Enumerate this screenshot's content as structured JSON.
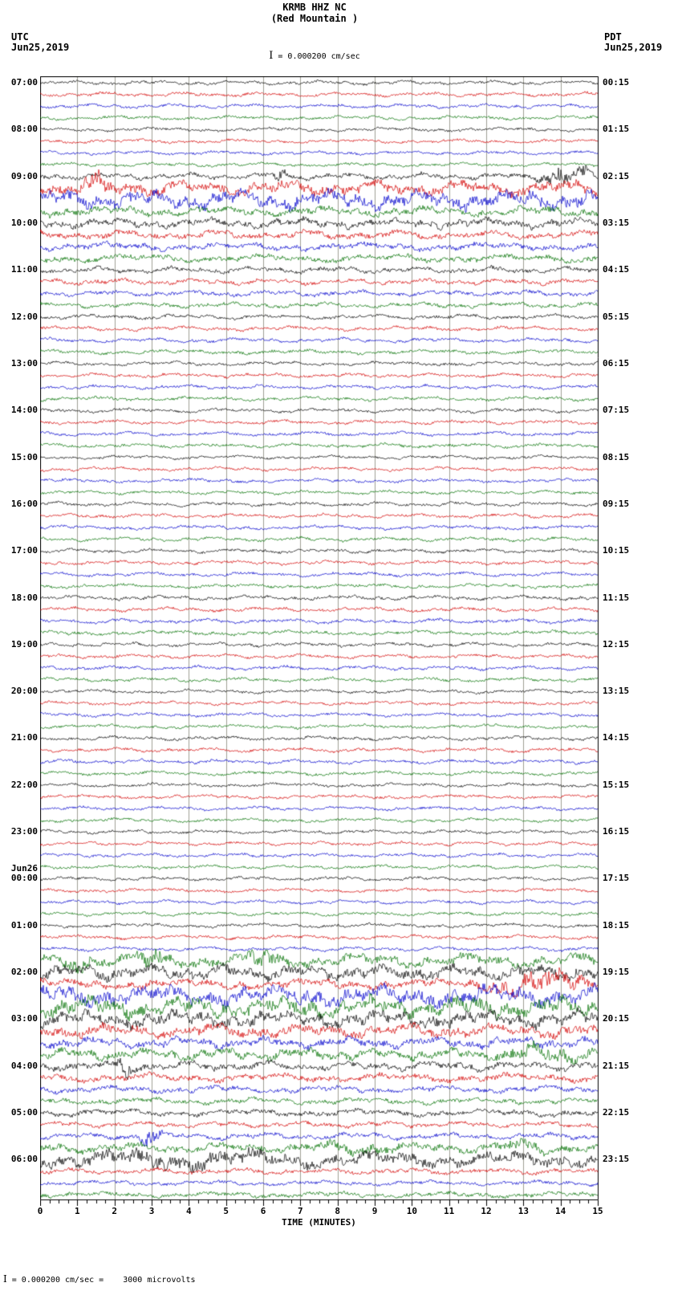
{
  "header": {
    "title": "KRMB HHZ NC",
    "subtitle": "(Red Mountain )",
    "scale_icon": "I",
    "scale_label": " = 0.000200 cm/sec",
    "left_tz": "UTC",
    "left_date": "Jun25,2019",
    "right_tz": "PDT",
    "right_date": "Jun25,2019"
  },
  "footer": {
    "scale_icon": "I",
    "note": " = 0.000200 cm/sec =    3000 microvolts"
  },
  "chart_data": {
    "type": "line",
    "subtype": "seismogram-helicorder",
    "title": "KRMB HHZ NC (Red Mountain )",
    "xlabel": "TIME (MINUTES)",
    "x_range": [
      0,
      15
    ],
    "x_ticks": [
      0,
      1,
      2,
      3,
      4,
      5,
      6,
      7,
      8,
      9,
      10,
      11,
      12,
      13,
      14,
      15
    ],
    "minutes_per_line": 15,
    "grid": "vertical-minute-lines",
    "legend_position": "none",
    "colors_cycle": [
      "#000000",
      "#d40000",
      "#0000cd",
      "#007000"
    ],
    "grid_color": "#a0a095",
    "rows": [
      {
        "utc": "07:00",
        "pdt": "00:15",
        "amp": 1.3
      },
      {
        "amp": 1.3
      },
      {
        "amp": 1.3
      },
      {
        "amp": 1.3
      },
      {
        "utc": "08:00",
        "pdt": "01:15",
        "amp": 1.2
      },
      {
        "amp": 1.2
      },
      {
        "amp": 1.2
      },
      {
        "amp": 1.2
      },
      {
        "utc": "09:00",
        "pdt": "02:15",
        "amp": 2.0,
        "bursts": [
          [
            6.2,
            6.7,
            3
          ],
          [
            13.3,
            15,
            4
          ]
        ]
      },
      {
        "amp": 4.5,
        "bursts": [
          [
            1.0,
            2.0,
            1.8
          ]
        ]
      },
      {
        "amp": 5.5
      },
      {
        "amp": 3.0
      },
      {
        "utc": "10:00",
        "pdt": "03:15",
        "amp": 3.0
      },
      {
        "amp": 2.6
      },
      {
        "amp": 2.4
      },
      {
        "amp": 2.4
      },
      {
        "utc": "11:00",
        "pdt": "04:15",
        "amp": 2.0
      },
      {
        "amp": 1.8
      },
      {
        "amp": 1.8
      },
      {
        "amp": 1.7
      },
      {
        "utc": "12:00",
        "pdt": "05:15",
        "amp": 1.5
      },
      {
        "amp": 1.4
      },
      {
        "amp": 1.4
      },
      {
        "amp": 1.4
      },
      {
        "utc": "13:00",
        "pdt": "06:15",
        "amp": 1.3
      },
      {
        "amp": 1.3
      },
      {
        "amp": 1.3
      },
      {
        "amp": 1.3
      },
      {
        "utc": "14:00",
        "pdt": "07:15",
        "amp": 1.3
      },
      {
        "amp": 1.3
      },
      {
        "amp": 1.3
      },
      {
        "amp": 1.3
      },
      {
        "utc": "15:00",
        "pdt": "08:15",
        "amp": 1.2
      },
      {
        "amp": 1.2
      },
      {
        "amp": 1.2
      },
      {
        "amp": 1.2
      },
      {
        "utc": "16:00",
        "pdt": "09:15",
        "amp": 1.3
      },
      {
        "amp": 1.3
      },
      {
        "amp": 1.3
      },
      {
        "amp": 1.3
      },
      {
        "utc": "17:00",
        "pdt": "10:15",
        "amp": 1.3
      },
      {
        "amp": 1.3
      },
      {
        "amp": 1.3
      },
      {
        "amp": 1.3
      },
      {
        "utc": "18:00",
        "pdt": "11:15",
        "amp": 1.4
      },
      {
        "amp": 1.4
      },
      {
        "amp": 1.4
      },
      {
        "amp": 1.4
      },
      {
        "utc": "19:00",
        "pdt": "12:15",
        "amp": 1.3
      },
      {
        "amp": 1.3
      },
      {
        "amp": 1.3
      },
      {
        "amp": 1.3
      },
      {
        "utc": "20:00",
        "pdt": "13:15",
        "amp": 1.2
      },
      {
        "amp": 1.2
      },
      {
        "amp": 1.2
      },
      {
        "amp": 1.2
      },
      {
        "utc": "21:00",
        "pdt": "14:15",
        "amp": 1.3
      },
      {
        "amp": 1.3
      },
      {
        "amp": 1.3
      },
      {
        "amp": 1.3
      },
      {
        "utc": "22:00",
        "pdt": "15:15",
        "amp": 1.2
      },
      {
        "amp": 1.2
      },
      {
        "amp": 1.2
      },
      {
        "amp": 1.2
      },
      {
        "utc": "23:00",
        "pdt": "16:15",
        "amp": 1.2
      },
      {
        "amp": 1.2
      },
      {
        "amp": 1.2
      },
      {
        "amp": 1.2
      },
      {
        "utc": "00:00",
        "date": "Jun26",
        "pdt": "17:15",
        "amp": 1.2
      },
      {
        "amp": 1.2
      },
      {
        "amp": 1.2
      },
      {
        "amp": 1.2
      },
      {
        "utc": "01:00",
        "pdt": "18:15",
        "amp": 1.3
      },
      {
        "amp": 1.3
      },
      {
        "amp": 1.3
      },
      {
        "amp": 4.0,
        "bursts": [
          [
            0.5,
            1.5,
            2
          ],
          [
            2.5,
            3.5,
            2
          ],
          [
            5.5,
            6.5,
            2
          ]
        ]
      },
      {
        "utc": "02:00",
        "pdt": "19:15",
        "amp": 4.5
      },
      {
        "amp": 3.0,
        "bursts": [
          [
            11.5,
            15,
            3
          ]
        ]
      },
      {
        "amp": 6.0
      },
      {
        "amp": 6.0
      },
      {
        "utc": "03:00",
        "pdt": "20:15",
        "amp": 5.0
      },
      {
        "amp": 4.0
      },
      {
        "amp": 3.5
      },
      {
        "amp": 3.5,
        "bursts": [
          [
            12,
            15,
            2
          ]
        ]
      },
      {
        "utc": "04:00",
        "pdt": "21:15",
        "amp": 2.8,
        "bursts": [
          [
            2.0,
            2.6,
            3
          ]
        ]
      },
      {
        "amp": 2.6
      },
      {
        "amp": 2.2
      },
      {
        "amp": 2.0
      },
      {
        "utc": "05:00",
        "pdt": "22:15",
        "amp": 2.2
      },
      {
        "amp": 1.8
      },
      {
        "amp": 2.0,
        "bursts": [
          [
            2.6,
            3.4,
            4
          ]
        ]
      },
      {
        "amp": 3.0,
        "bursts": [
          [
            7,
            10,
            1.5
          ],
          [
            12,
            14,
            1.8
          ]
        ]
      },
      {
        "utc": "06:00",
        "pdt": "23:15",
        "amp": 4.5,
        "bursts": [
          [
            0,
            8,
            1.4
          ]
        ]
      },
      {
        "amp": 1.8
      },
      {
        "amp": 1.5
      },
      {
        "amp": 1.8
      }
    ]
  }
}
